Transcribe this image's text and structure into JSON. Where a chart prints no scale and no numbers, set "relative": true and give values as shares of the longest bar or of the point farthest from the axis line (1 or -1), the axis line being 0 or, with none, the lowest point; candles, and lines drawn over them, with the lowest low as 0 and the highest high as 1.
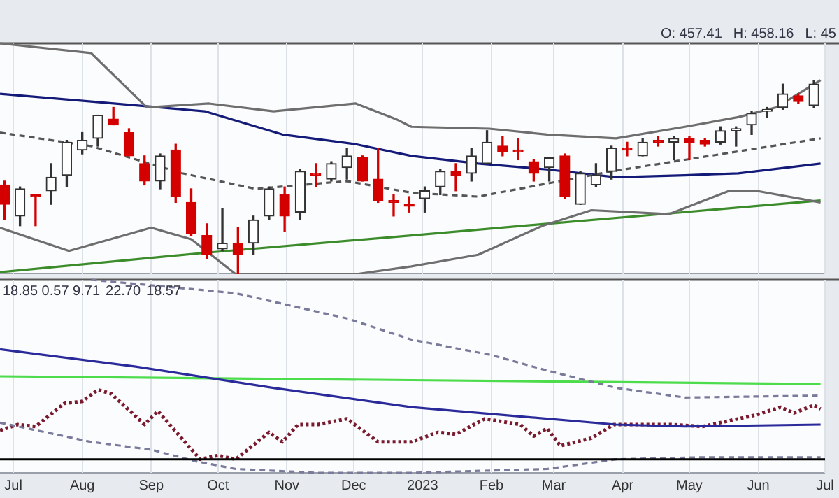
{
  "chart_data": [
    {
      "type": "candlestick",
      "relative": true,
      "grid": "x",
      "tick_labels": false,
      "annotations": [
        "O: 457.41",
        "H: 458.16",
        "L: 45"
      ],
      "xlim": [
        "2022-06-25",
        "2023-07-01"
      ],
      "xticks": [
        {
          "value": "2022-07-01",
          "label": null
        },
        {
          "value": "2022-08-01",
          "label": null
        },
        {
          "value": "2022-09-01",
          "label": null
        },
        {
          "value": "2022-10-01",
          "label": null
        },
        {
          "value": "2022-11-01",
          "label": null
        },
        {
          "value": "2022-12-01",
          "label": null
        },
        {
          "value": "2023-01-01",
          "label": null
        },
        {
          "value": "2023-02-01",
          "label": null
        },
        {
          "value": "2023-03-01",
          "label": null
        },
        {
          "value": "2023-04-01",
          "label": null
        },
        {
          "value": "2023-05-01",
          "label": null
        },
        {
          "value": "2023-06-01",
          "label": null
        },
        {
          "value": "2023-07-01",
          "label": null
        }
      ],
      "x": [
        "2022-06-27",
        "2022-07-04",
        "2022-07-11",
        "2022-07-18",
        "2022-07-25",
        "2022-08-01",
        "2022-08-08",
        "2022-08-15",
        "2022-08-22",
        "2022-08-29",
        "2022-09-05",
        "2022-09-12",
        "2022-09-19",
        "2022-09-26",
        "2022-10-03",
        "2022-10-10",
        "2022-10-17",
        "2022-10-24",
        "2022-10-31",
        "2022-11-07",
        "2022-11-14",
        "2022-11-21",
        "2022-11-28",
        "2022-12-05",
        "2022-12-12",
        "2022-12-19",
        "2022-12-26",
        "2023-01-02",
        "2023-01-09",
        "2023-01-16",
        "2023-01-23",
        "2023-01-30",
        "2023-02-06",
        "2023-02-13",
        "2023-02-20",
        "2023-02-27",
        "2023-03-06",
        "2023-03-13",
        "2023-03-20",
        "2023-03-27",
        "2023-04-03",
        "2023-04-10",
        "2023-04-17",
        "2023-04-24",
        "2023-05-01",
        "2023-05-08",
        "2023-05-15",
        "2023-05-22",
        "2023-05-29",
        "2023-06-05",
        "2023-06-12",
        "2023-06-19",
        "2023-06-26"
      ],
      "ohlc": [
        [
          0.46,
          0.48,
          0.28,
          0.36
        ],
        [
          0.3,
          0.45,
          0.25,
          0.44
        ],
        [
          0.41,
          0.41,
          0.25,
          0.4
        ],
        [
          0.43,
          0.57,
          0.36,
          0.5
        ],
        [
          0.51,
          0.69,
          0.45,
          0.68
        ],
        [
          0.64,
          0.73,
          0.62,
          0.69
        ],
        [
          0.7,
          0.82,
          0.66,
          0.82
        ],
        [
          0.8,
          0.86,
          0.77,
          0.77
        ],
        [
          0.73,
          0.75,
          0.61,
          0.61
        ],
        [
          0.57,
          0.61,
          0.46,
          0.48
        ],
        [
          0.48,
          0.62,
          0.44,
          0.61
        ],
        [
          0.64,
          0.67,
          0.37,
          0.4
        ],
        [
          0.37,
          0.44,
          0.2,
          0.21
        ],
        [
          0.2,
          0.26,
          0.08,
          0.1
        ],
        [
          0.13,
          0.34,
          0.12,
          0.16
        ],
        [
          0.16,
          0.24,
          0.0,
          0.1
        ],
        [
          0.16,
          0.3,
          0.1,
          0.28
        ],
        [
          0.3,
          0.45,
          0.28,
          0.44
        ],
        [
          0.41,
          0.45,
          0.22,
          0.3
        ],
        [
          0.32,
          0.54,
          0.28,
          0.53
        ],
        [
          0.52,
          0.57,
          0.45,
          0.51
        ],
        [
          0.49,
          0.58,
          0.48,
          0.57
        ],
        [
          0.55,
          0.65,
          0.49,
          0.61
        ],
        [
          0.6,
          0.61,
          0.48,
          0.48
        ],
        [
          0.49,
          0.65,
          0.37,
          0.38
        ],
        [
          0.38,
          0.41,
          0.3,
          0.37
        ],
        [
          0.36,
          0.4,
          0.32,
          0.35
        ],
        [
          0.39,
          0.45,
          0.32,
          0.43
        ],
        [
          0.45,
          0.54,
          0.41,
          0.53
        ],
        [
          0.53,
          0.57,
          0.43,
          0.51
        ],
        [
          0.52,
          0.65,
          0.48,
          0.61
        ],
        [
          0.57,
          0.74,
          0.57,
          0.68
        ],
        [
          0.66,
          0.71,
          0.61,
          0.63
        ],
        [
          0.64,
          0.7,
          0.59,
          0.63
        ],
        [
          0.58,
          0.59,
          0.48,
          0.52
        ],
        [
          0.55,
          0.6,
          0.48,
          0.6
        ],
        [
          0.61,
          0.62,
          0.39,
          0.4
        ],
        [
          0.36,
          0.53,
          0.36,
          0.52
        ],
        [
          0.46,
          0.57,
          0.45,
          0.51
        ],
        [
          0.53,
          0.66,
          0.49,
          0.65
        ],
        [
          0.65,
          0.68,
          0.61,
          0.64
        ],
        [
          0.61,
          0.7,
          0.61,
          0.68
        ],
        [
          0.69,
          0.71,
          0.66,
          0.68
        ],
        [
          0.68,
          0.71,
          0.59,
          0.7
        ],
        [
          0.7,
          0.71,
          0.59,
          0.68
        ],
        [
          0.69,
          0.7,
          0.66,
          0.67
        ],
        [
          0.68,
          0.76,
          0.67,
          0.74
        ],
        [
          0.74,
          0.76,
          0.66,
          0.75
        ],
        [
          0.77,
          0.84,
          0.72,
          0.83
        ],
        [
          0.84,
          0.86,
          0.81,
          0.85
        ],
        [
          0.86,
          0.98,
          0.85,
          0.93
        ],
        [
          0.92,
          0.93,
          0.88,
          0.89
        ],
        [
          0.87,
          1.0,
          0.86,
          0.98
        ]
      ],
      "colors": [
        "#d40000",
        "#333333",
        "#d40000",
        "#333333",
        "#333333",
        "#333333",
        "#333333",
        "#d40000",
        "#d40000",
        "#d40000",
        "#333333",
        "#d40000",
        "#d40000",
        "#d40000",
        "#333333",
        "#d40000",
        "#333333",
        "#333333",
        "#d40000",
        "#333333",
        "#d40000",
        "#333333",
        "#333333",
        "#d40000",
        "#d40000",
        "#d40000",
        "#d40000",
        "#333333",
        "#333333",
        "#d40000",
        "#333333",
        "#333333",
        "#d40000",
        "#d40000",
        "#d40000",
        "#333333",
        "#d40000",
        "#333333",
        "#333333",
        "#333333",
        "#d40000",
        "#333333",
        "#d40000",
        "#333333",
        "#d40000",
        "#d40000",
        "#333333",
        "#333333",
        "#333333",
        "#333333",
        "#333333",
        "#d40000",
        "#333333"
      ],
      "series": [
        {
          "type": "line",
          "color": "#6e6e6e",
          "line_style": "solid",
          "x": [
            "2022-06-25",
            "2022-08-05",
            "2022-08-30",
            "2022-09-27",
            "2022-10-26",
            "2022-12-02",
            "2022-12-20",
            "2022-12-27",
            "2023-01-31",
            "2023-02-26",
            "2023-03-29",
            "2023-04-29",
            "2023-05-23",
            "2023-06-09",
            "2023-06-29"
          ],
          "values": [
            1.19,
            1.14,
            0.86,
            0.88,
            0.84,
            0.88,
            0.8,
            0.76,
            0.75,
            0.72,
            0.7,
            0.76,
            0.81,
            0.86,
            1.0
          ]
        },
        {
          "type": "line",
          "color": "#6e6e6e",
          "line_style": "solid",
          "x": [
            "2022-06-25",
            "2022-07-26",
            "2022-09-01",
            "2022-09-19",
            "2022-10-09",
            "2022-10-26",
            "2022-12-02",
            "2022-12-27",
            "2023-01-26",
            "2023-02-24",
            "2023-03-18",
            "2023-04-22",
            "2023-05-19",
            "2023-05-31",
            "2023-06-29"
          ],
          "values": [
            0.24,
            0.12,
            0.24,
            0.18,
            0.0,
            0.0,
            0.0,
            0.04,
            0.1,
            0.25,
            0.33,
            0.31,
            0.43,
            0.43,
            0.37
          ]
        },
        {
          "type": "line",
          "color": "#555555",
          "line_style": "dashed",
          "x": [
            "2022-06-25",
            "2022-08-05",
            "2022-09-15",
            "2022-10-18",
            "2022-11-28",
            "2022-12-27",
            "2023-01-26",
            "2023-03-27",
            "2023-06-29"
          ],
          "values": [
            0.73,
            0.66,
            0.52,
            0.44,
            0.48,
            0.42,
            0.4,
            0.53,
            0.7
          ]
        },
        {
          "type": "line",
          "color": "#141a78",
          "line_style": "solid",
          "x": [
            "2022-06-25",
            "2022-08-05",
            "2022-09-25",
            "2022-10-30",
            "2022-12-02",
            "2022-12-27",
            "2023-01-26",
            "2023-02-26",
            "2023-03-29",
            "2023-04-29",
            "2023-05-23",
            "2023-06-29"
          ],
          "values": [
            0.93,
            0.89,
            0.84,
            0.72,
            0.67,
            0.61,
            0.57,
            0.54,
            0.5,
            0.51,
            0.52,
            0.57
          ]
        },
        {
          "type": "line",
          "color": "#3c8c2c",
          "line_style": "solid",
          "x": [
            "2022-06-25",
            "2022-09-25",
            "2022-12-27",
            "2023-02-26",
            "2023-04-29",
            "2023-06-29"
          ],
          "values": [
            0.01,
            0.11,
            0.2,
            0.26,
            0.32,
            0.38
          ]
        }
      ]
    },
    {
      "type": "line",
      "relative": true,
      "grid": "x",
      "tick_labels": "x",
      "annotations": [
        "18.85 0.57 9.71",
        "22.70",
        "18.57"
      ],
      "xlim": [
        "2022-06-25",
        "2023-07-01"
      ],
      "xticks": [
        {
          "value": "2022-07-01",
          "label": "Jul"
        },
        {
          "value": "2022-08-01",
          "label": "Aug"
        },
        {
          "value": "2022-09-01",
          "label": "Sep"
        },
        {
          "value": "2022-10-01",
          "label": "Oct"
        },
        {
          "value": "2022-11-01",
          "label": "Nov"
        },
        {
          "value": "2022-12-01",
          "label": "Dec"
        },
        {
          "value": "2023-01-01",
          "label": "2023"
        },
        {
          "value": "2023-02-01",
          "label": "Feb"
        },
        {
          "value": "2023-03-01",
          "label": "Mar"
        },
        {
          "value": "2023-04-01",
          "label": "Apr"
        },
        {
          "value": "2023-05-01",
          "label": "May"
        },
        {
          "value": "2023-06-01",
          "label": "Jun"
        },
        {
          "value": "2023-07-01",
          "label": "Jul"
        }
      ],
      "ref_lines": [
        {
          "axis": "y",
          "value": 0.07,
          "color": "#000000"
        }
      ],
      "series": [
        {
          "color": "#7a7a9a",
          "line_style": "dashed",
          "x": [
            "2022-08-05",
            "2022-09-21",
            "2022-10-09",
            "2022-11-28",
            "2022-12-27",
            "2023-02-01",
            "2023-02-26",
            "2023-03-29",
            "2023-04-29",
            "2023-06-29"
          ],
          "values": [
            1.0,
            0.95,
            0.93,
            0.8,
            0.69,
            0.61,
            0.53,
            0.44,
            0.39,
            0.4
          ]
        },
        {
          "color": "#7a7a9a",
          "line_style": "dashed",
          "x": [
            "2022-06-25",
            "2022-08-05",
            "2022-09-01",
            "2022-09-21",
            "2022-10-09",
            "2022-11-15",
            "2022-12-27",
            "2023-02-26",
            "2023-03-29",
            "2023-05-05",
            "2023-06-29"
          ],
          "values": [
            0.26,
            0.16,
            0.12,
            0.06,
            0.02,
            0.0,
            0.0,
            0.02,
            0.07,
            0.08,
            0.08
          ]
        },
        {
          "color": "#2a2a9a",
          "line_style": "solid",
          "x": [
            "2022-06-25",
            "2022-08-25",
            "2022-10-26",
            "2022-12-27",
            "2023-03-29",
            "2023-04-29",
            "2023-06-29"
          ],
          "values": [
            0.64,
            0.55,
            0.44,
            0.34,
            0.25,
            0.24,
            0.25
          ]
        },
        {
          "color": "#4cdc4c",
          "line_style": "solid",
          "x": [
            "2022-06-25",
            "2022-12-27",
            "2023-06-29"
          ],
          "values": [
            0.5,
            0.48,
            0.46
          ]
        },
        {
          "color": "#7a1a2e",
          "line_style": "dotted",
          "x": [
            "2022-06-25",
            "2022-07-03",
            "2022-07-11",
            "2022-07-24",
            "2022-08-01",
            "2022-08-08",
            "2022-08-14",
            "2022-08-29",
            "2022-09-04",
            "2022-09-23",
            "2022-10-01",
            "2022-10-09",
            "2022-10-24",
            "2022-10-30",
            "2022-11-06",
            "2022-11-15",
            "2022-11-28",
            "2022-12-12",
            "2022-12-27",
            "2023-01-08",
            "2023-01-16",
            "2023-01-29",
            "2023-02-14",
            "2023-02-20",
            "2023-02-26",
            "2023-03-04",
            "2023-03-18",
            "2023-03-28",
            "2023-04-23",
            "2023-05-07",
            "2023-05-31",
            "2023-06-11",
            "2023-06-17",
            "2023-06-26",
            "2023-06-29"
          ],
          "values": [
            0.22,
            0.25,
            0.24,
            0.36,
            0.37,
            0.43,
            0.41,
            0.25,
            0.32,
            0.07,
            0.09,
            0.07,
            0.21,
            0.16,
            0.25,
            0.25,
            0.28,
            0.16,
            0.16,
            0.21,
            0.2,
            0.28,
            0.25,
            0.19,
            0.23,
            0.14,
            0.18,
            0.25,
            0.25,
            0.24,
            0.3,
            0.34,
            0.31,
            0.35,
            0.33
          ]
        }
      ]
    }
  ]
}
